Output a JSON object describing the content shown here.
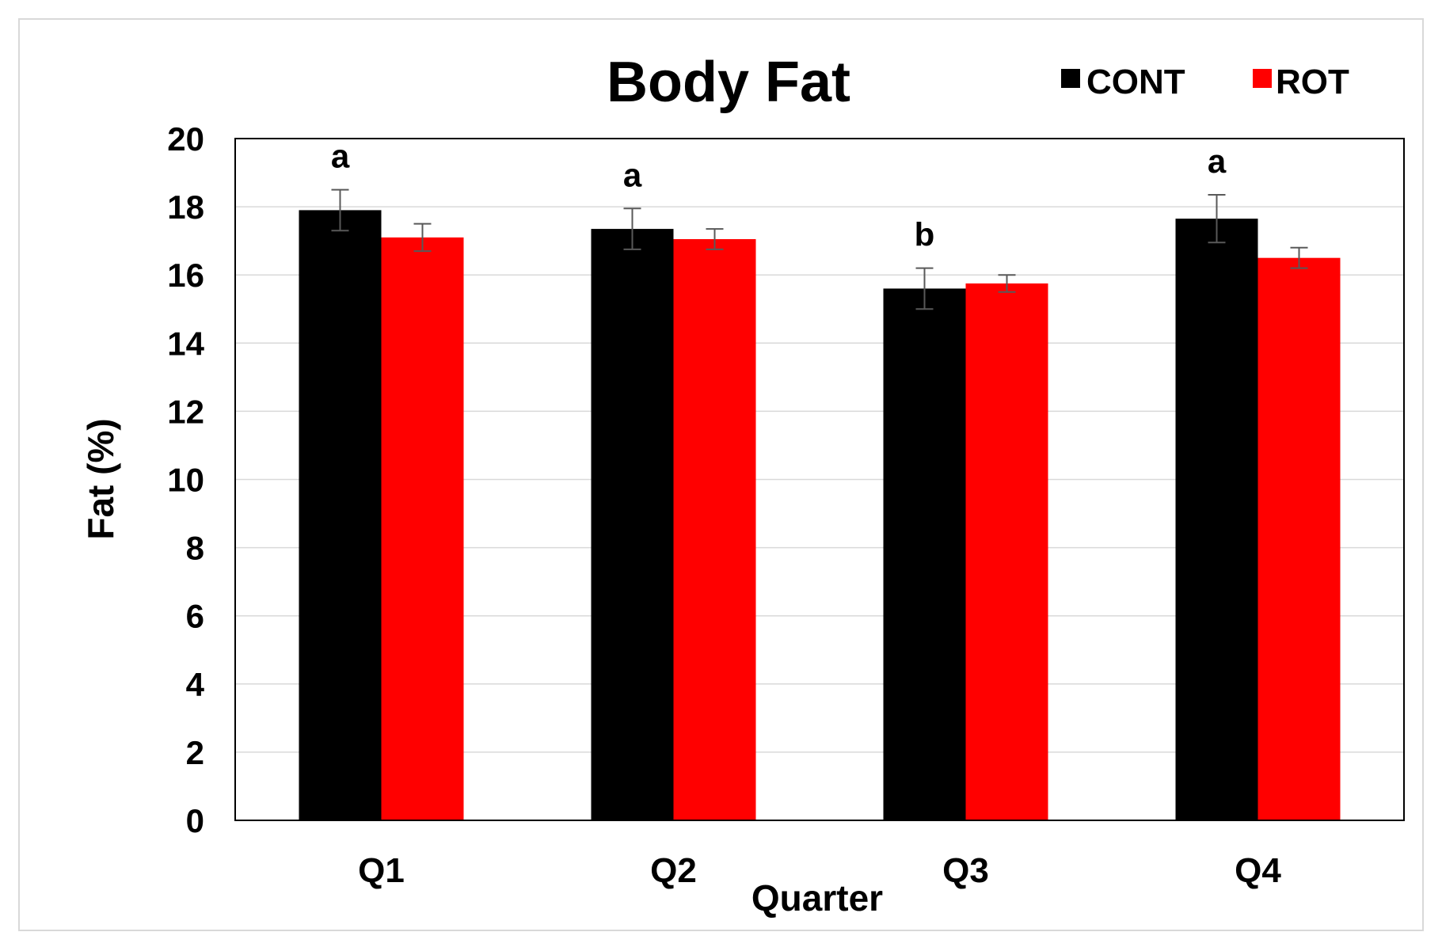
{
  "chart_data": {
    "type": "bar",
    "title": "Body Fat",
    "xlabel": "Quarter",
    "ylabel": "Fat (%)",
    "ylim": [
      0,
      20
    ],
    "yticks": [
      "0",
      "2",
      "4",
      "6",
      "8",
      "10",
      "12",
      "14",
      "16",
      "18",
      "20"
    ],
    "categories": [
      "Q1",
      "Q2",
      "Q3",
      "Q4"
    ],
    "series": [
      {
        "name": "CONT",
        "color": "#000000",
        "values": [
          17.9,
          17.35,
          15.6,
          17.65
        ],
        "errors": [
          0.6,
          0.6,
          0.6,
          0.7
        ]
      },
      {
        "name": "ROT",
        "color": "#ff0000",
        "values": [
          17.1,
          17.05,
          15.75,
          16.5
        ],
        "errors": [
          0.4,
          0.3,
          0.25,
          0.3
        ]
      }
    ],
    "annotations": [
      "a",
      "a",
      "b",
      "a"
    ],
    "grid": true,
    "legend_position": "top-right"
  }
}
